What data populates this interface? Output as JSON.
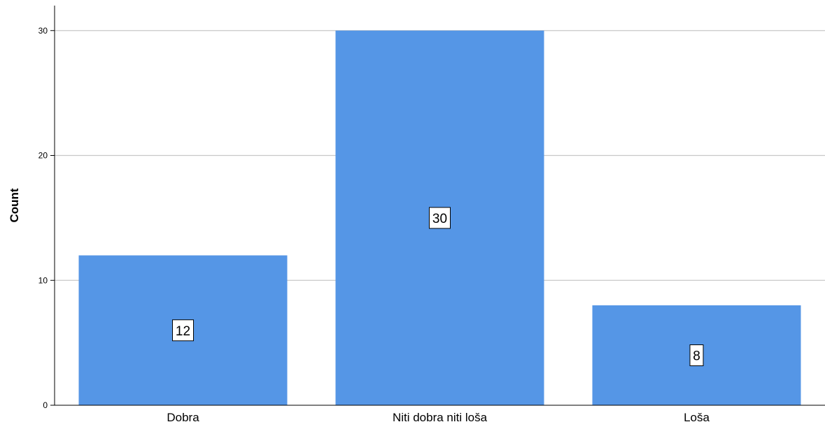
{
  "chart_data": {
    "type": "bar",
    "categories": [
      "Dobra",
      "Niti dobra niti loša",
      "Loša"
    ],
    "values": [
      12,
      30,
      8
    ],
    "data_labels": [
      "12",
      "30",
      "8"
    ],
    "title": "",
    "xlabel": "",
    "ylabel": "Count",
    "ylim": [
      0,
      32
    ],
    "yticks": [
      0,
      10,
      20,
      30
    ],
    "ytick_labels": [
      "0",
      "10",
      "20",
      "30"
    ],
    "grid": true,
    "legend": "none",
    "bar_color": "#5596e6",
    "grid_color": "#c8c8c8",
    "axis_color": "#000000"
  }
}
